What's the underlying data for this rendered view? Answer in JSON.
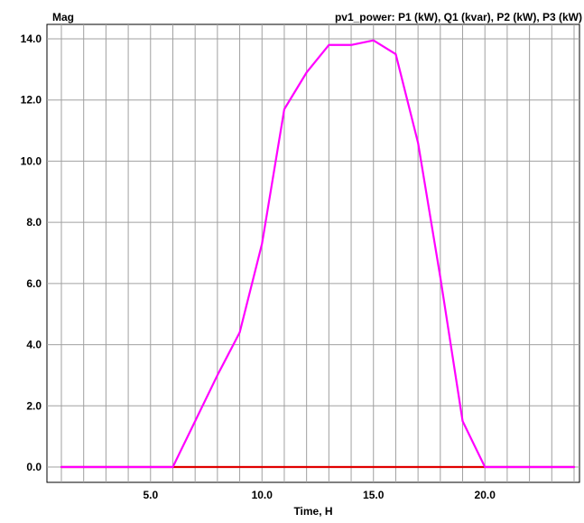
{
  "chart_data": {
    "type": "line",
    "ylabel": "Mag",
    "title": "pv1_power:  P1 (kW),  Q1 (kvar),  P2 (kW),  P3 (kW)",
    "xlabel": "Time, H",
    "xlim": [
      1,
      24
    ],
    "ylim": [
      0,
      14
    ],
    "x_ticks": [
      5,
      10,
      15,
      20
    ],
    "x_tick_labels": [
      "5.0",
      "10.0",
      "15.0",
      "20.0"
    ],
    "y_ticks": [
      0,
      2,
      4,
      6,
      8,
      10,
      12,
      14
    ],
    "y_tick_labels": [
      "0.0",
      "2.0",
      "4.0",
      "6.0",
      "8.0",
      "10.0",
      "12.0",
      "14.0"
    ],
    "grid": true,
    "x": [
      1,
      2,
      3,
      4,
      5,
      6,
      7,
      8,
      9,
      10,
      11,
      12,
      13,
      14,
      15,
      16,
      17,
      18,
      19,
      20,
      21,
      22,
      23,
      24
    ],
    "series": [
      {
        "color": "#ff00ff",
        "values": [
          0,
          0,
          0,
          0,
          0,
          0,
          1.5,
          3.0,
          4.4,
          7.3,
          11.7,
          12.9,
          13.8,
          13.8,
          13.95,
          13.5,
          10.6,
          6.2,
          1.5,
          0,
          0,
          0,
          0,
          0
        ]
      },
      {
        "color": "#e00000",
        "values": [
          0,
          0,
          0,
          0,
          0,
          0,
          0,
          0,
          0,
          0,
          0,
          0,
          0,
          0,
          0,
          0,
          0,
          0,
          0,
          0,
          0,
          0,
          0,
          0
        ]
      }
    ]
  }
}
